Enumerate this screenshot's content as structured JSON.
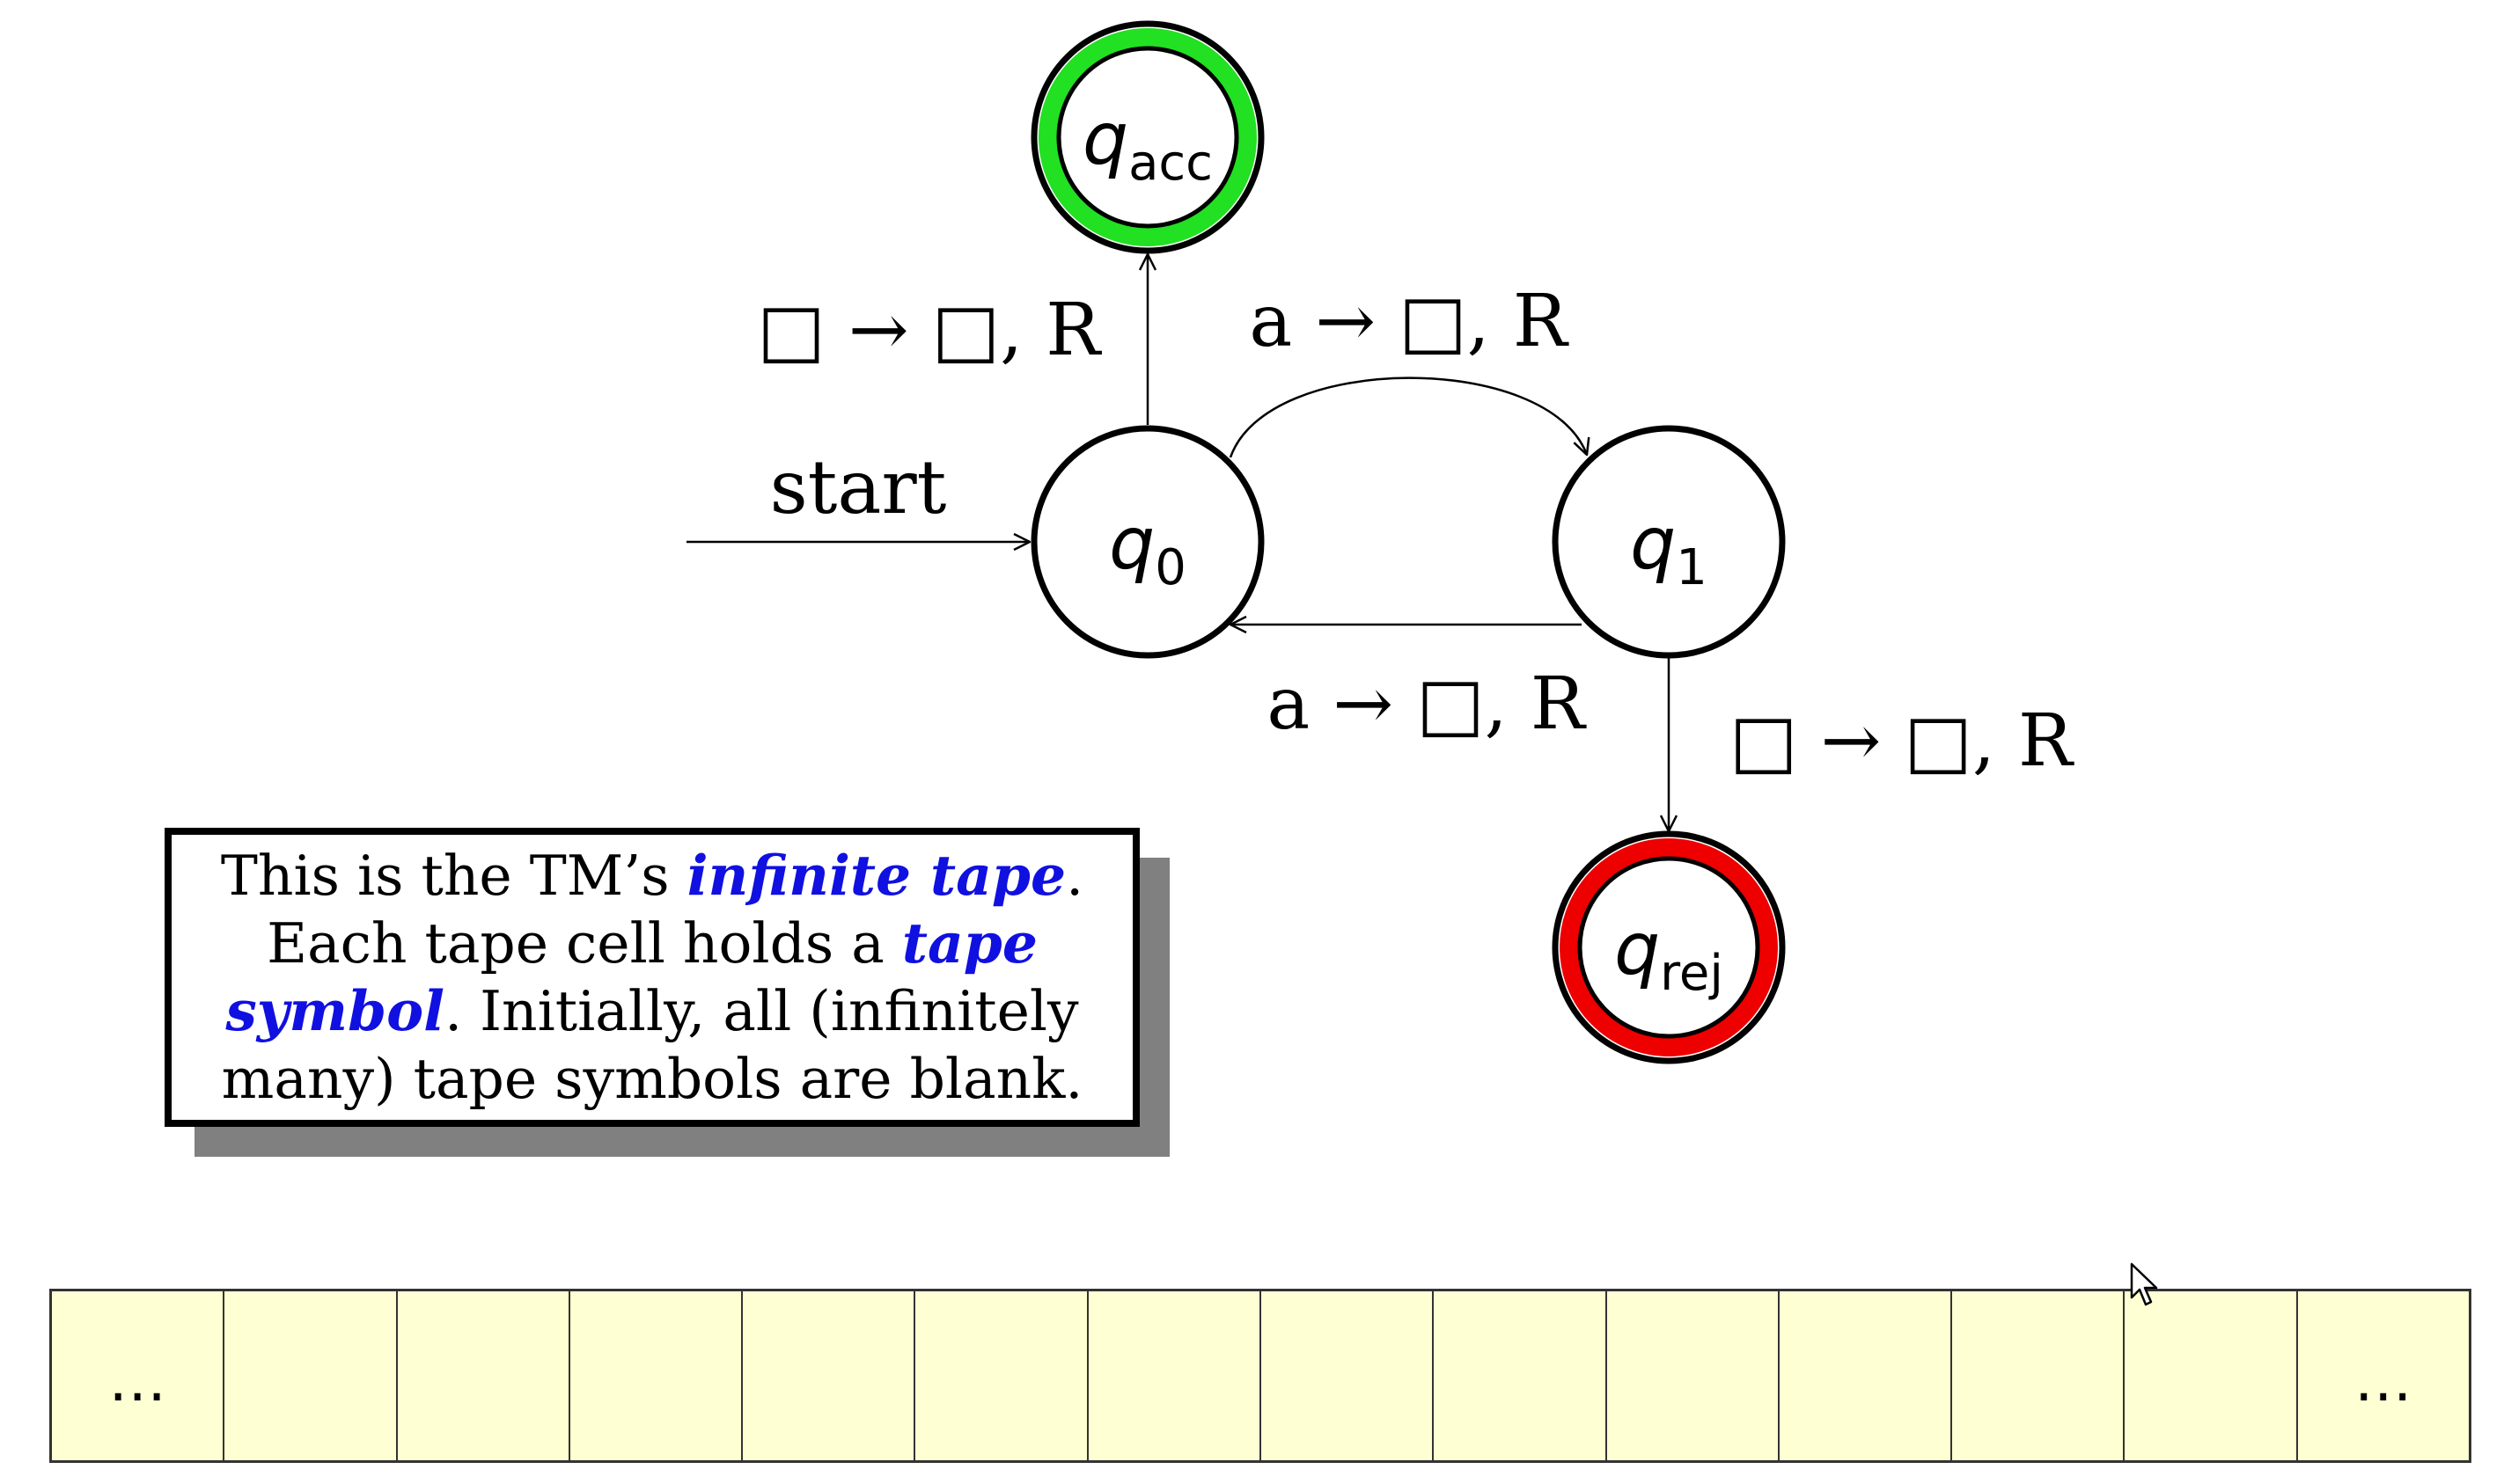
{
  "states": {
    "q0": {
      "base": "q",
      "sub": "0"
    },
    "q1": {
      "base": "q",
      "sub": "1"
    },
    "qacc": {
      "base": "q",
      "sub": "acc",
      "ring_color": "#22e022"
    },
    "qrej": {
      "base": "q",
      "sub": "rej",
      "ring_color": "#ee0000"
    }
  },
  "start_label": "start",
  "transitions": {
    "q0_to_qacc": {
      "read": "□",
      "write": "□",
      "move": "R"
    },
    "q0_to_q1": {
      "read": "a",
      "write": "□",
      "move": "R"
    },
    "q1_to_q0": {
      "read": "a",
      "write": "□",
      "move": "R"
    },
    "q1_to_qrej": {
      "read": "□",
      "write": "□",
      "move": "R"
    }
  },
  "arrow_glyph": "→",
  "callout": {
    "t1": "This is the TM’s ",
    "e1": "infinite tape",
    "t2": ". Each tape cell holds a ",
    "e2": "tape symbol",
    "t3": ". Initially, all (infinitely many) tape symbols are blank."
  },
  "tape": {
    "cells": [
      "…",
      "",
      "",
      "",
      "",
      "",
      "",
      "",
      "",
      "",
      "",
      "",
      "",
      "…"
    ],
    "fill_color": "#ffffd4"
  },
  "cursor": "arrow-cursor-icon"
}
